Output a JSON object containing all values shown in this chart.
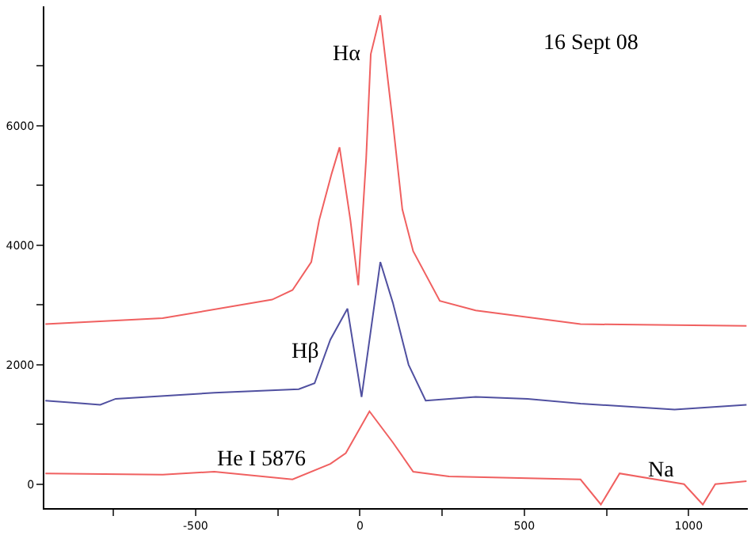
{
  "chart_data": {
    "type": "line",
    "xlim": [
      -960,
      1180
    ],
    "ylim": [
      -400,
      8000
    ],
    "xticks": [
      {
        "value": -750,
        "label": null
      },
      -500,
      {
        "value": -250,
        "label": null
      },
      0,
      {
        "value": 250,
        "label": null
      },
      500,
      {
        "value": 750,
        "label": null
      },
      1000
    ],
    "yticks": [
      0,
      {
        "value": 1000,
        "label": null
      },
      2000,
      {
        "value": 3000,
        "label": null
      },
      4000,
      {
        "value": 5000,
        "label": null
      },
      6000,
      {
        "value": 7000,
        "label": null
      }
    ],
    "series": [
      {
        "color": "#f06060",
        "x": [
          -957,
          -600,
          -267,
          -205,
          -148,
          -124,
          -86,
          -62,
          -29,
          -5,
          19,
          33,
          62,
          100,
          129,
          162,
          243,
          352,
          671,
          1176
        ],
        "values": [
          2680,
          2780,
          3090,
          3250,
          3720,
          4420,
          5200,
          5640,
          4420,
          3330,
          5460,
          7200,
          7850,
          6060,
          4600,
          3900,
          3070,
          2910,
          2680,
          2650
        ]
      },
      {
        "color": "#5050a0",
        "x": [
          -957,
          -790,
          -743,
          -443,
          -186,
          -138,
          -90,
          -38,
          5,
          62,
          100,
          148,
          200,
          352,
          510,
          671,
          957,
          1176
        ],
        "values": [
          1400,
          1330,
          1430,
          1530,
          1590,
          1690,
          2420,
          2940,
          1460,
          3720,
          3040,
          2000,
          1400,
          1460,
          1430,
          1350,
          1250,
          1330
        ]
      },
      {
        "color": "#f06060",
        "x": [
          -957,
          -600,
          -443,
          -205,
          -90,
          -43,
          29,
          100,
          162,
          271,
          671,
          733,
          790,
          986,
          1043,
          1081,
          1176
        ],
        "values": [
          180,
          160,
          210,
          80,
          340,
          520,
          1220,
          700,
          210,
          130,
          80,
          -340,
          180,
          0,
          -340,
          0,
          50
        ]
      }
    ],
    "annotations": [
      "Hα",
      "Hβ",
      "He I 5876",
      "Na",
      "16 Sept 08"
    ]
  }
}
